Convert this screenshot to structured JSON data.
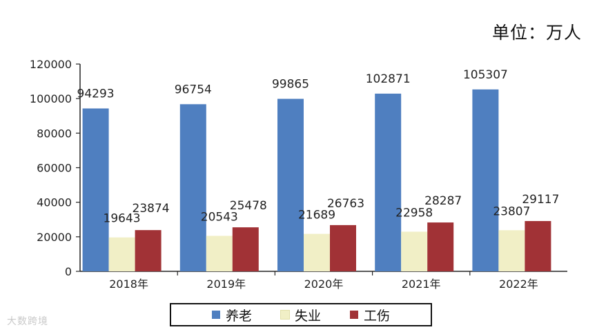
{
  "unit_label": "单位：万人",
  "watermark": "大数跨境",
  "legend": [
    {
      "label": "养老",
      "color": "#4f7fc0"
    },
    {
      "label": "失业",
      "color": "#f1efc6"
    },
    {
      "label": "工伤",
      "color": "#a13236"
    }
  ],
  "chart_data": {
    "type": "bar",
    "categories": [
      "2018年",
      "2019年",
      "2020年",
      "2021年",
      "2022年"
    ],
    "series": [
      {
        "name": "养老",
        "color": "#4f7fc0",
        "values": [
          94293,
          96754,
          99865,
          102871,
          105307
        ]
      },
      {
        "name": "失业",
        "color": "#f1efc6",
        "values": [
          19643,
          20543,
          21689,
          22958,
          23807
        ]
      },
      {
        "name": "工伤",
        "color": "#a13236",
        "values": [
          23874,
          25478,
          26763,
          28287,
          29117
        ]
      }
    ],
    "ylim": [
      0,
      120000
    ],
    "yticks": [
      "0",
      "20000",
      "40000",
      "60000",
      "80000",
      "100000",
      "120000"
    ],
    "ytick_values": [
      0,
      20000,
      40000,
      60000,
      80000,
      100000,
      120000
    ],
    "legend_position": "bottom",
    "grid": false
  }
}
